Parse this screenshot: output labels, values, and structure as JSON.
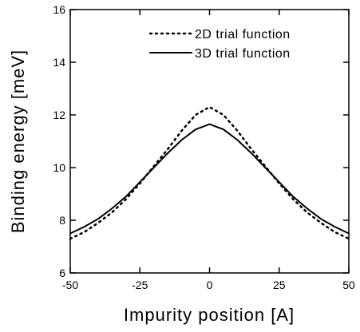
{
  "chart_data": {
    "type": "line",
    "xlabel": "Impurity position [A]",
    "ylabel": "Binding energy [meV]",
    "x": [
      -50,
      -45,
      -40,
      -35,
      -30,
      -25,
      -20,
      -15,
      -10,
      -5,
      0,
      5,
      10,
      15,
      20,
      25,
      30,
      35,
      40,
      45,
      50
    ],
    "series": [
      {
        "name": "2D trial function",
        "color": "#000000",
        "style": "dotted",
        "values": [
          7.3,
          7.55,
          7.9,
          8.3,
          8.8,
          9.4,
          10.05,
          10.7,
          11.4,
          12.0,
          12.3,
          12.0,
          11.4,
          10.7,
          10.05,
          9.4,
          8.8,
          8.3,
          7.9,
          7.55,
          7.3
        ]
      },
      {
        "name": "3D trial function",
        "color": "#000000",
        "style": "solid",
        "values": [
          7.5,
          7.75,
          8.05,
          8.45,
          8.9,
          9.45,
          10.0,
          10.55,
          11.05,
          11.45,
          11.65,
          11.45,
          11.05,
          10.55,
          10.0,
          9.45,
          8.9,
          8.45,
          8.05,
          7.75,
          7.5
        ]
      }
    ],
    "xlim": [
      -50,
      50
    ],
    "xticks": [
      -50,
      -25,
      0,
      25,
      50
    ],
    "ylim": [
      6,
      16
    ],
    "yticks": [
      6,
      8,
      10,
      12,
      14,
      16
    ],
    "legend": "upper right"
  }
}
